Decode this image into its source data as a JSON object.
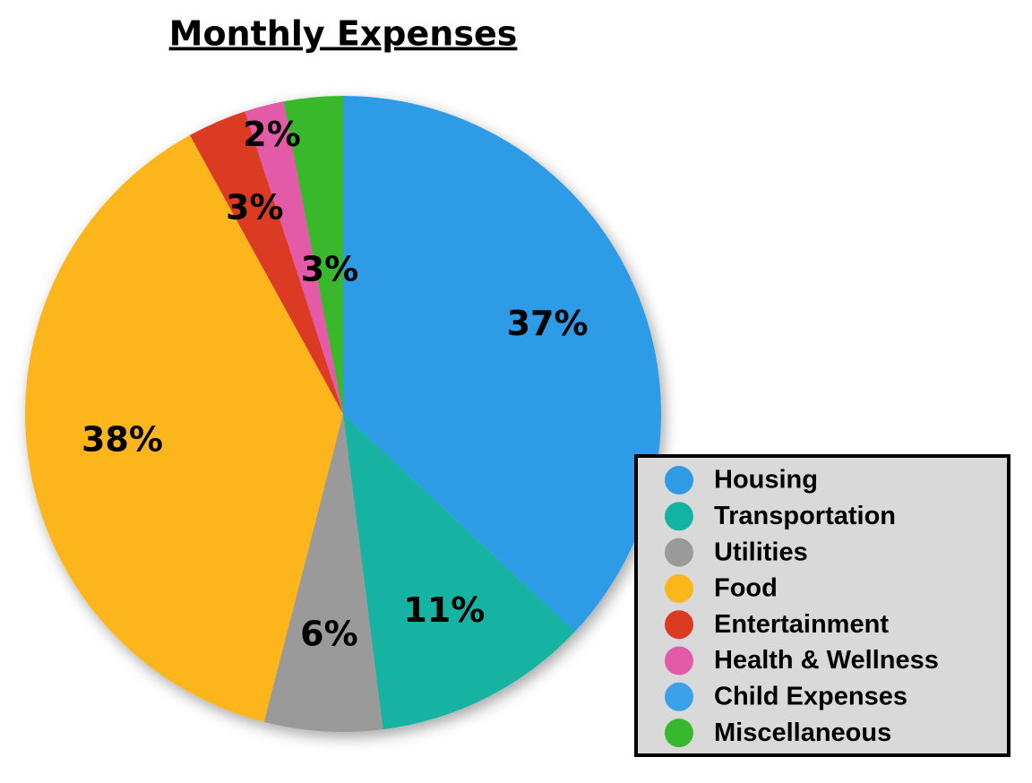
{
  "chart_data": {
    "type": "pie",
    "title": "Monthly Expenses",
    "categories": [
      "Housing",
      "Transportation",
      "Utilities",
      "Food",
      "Entertainment",
      "Health & Wellness",
      "Child Expenses",
      "Miscellaneous"
    ],
    "values": [
      37,
      11,
      6,
      38,
      3,
      2,
      0,
      3
    ],
    "value_labels": [
      "37%",
      "11%",
      "6%",
      "38%",
      "3%",
      "2%",
      null,
      "3%"
    ],
    "colors": [
      "#2f9be6",
      "#13b3a3",
      "#9a9a9a",
      "#fdb51c",
      "#db3a22",
      "#e25aa8",
      "#3aa0e8",
      "#38b82c"
    ],
    "legend": "lower right"
  }
}
